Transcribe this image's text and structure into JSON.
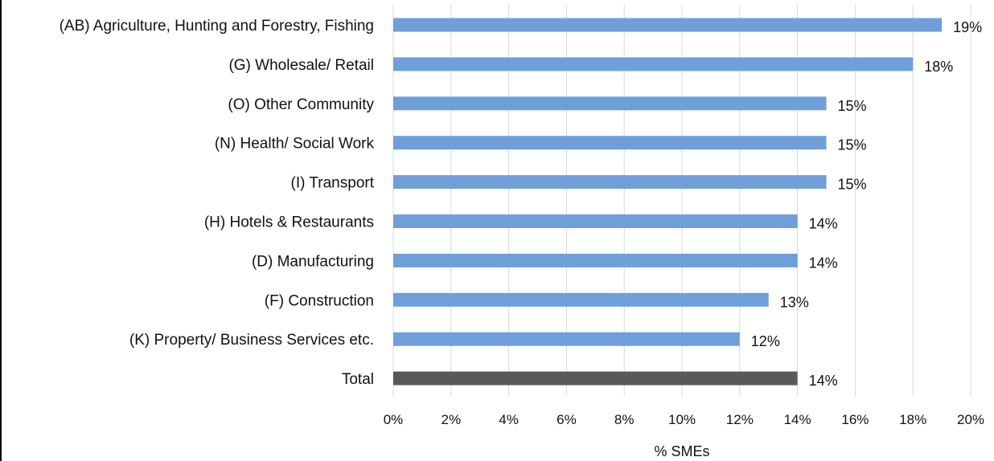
{
  "chart_data": {
    "type": "bar",
    "orientation": "horizontal",
    "categories": [
      "(AB) Agriculture, Hunting and Forestry, Fishing",
      "(G) Wholesale/ Retail",
      "(O) Other Community",
      "(N) Health/ Social Work",
      "(I) Transport",
      "(H) Hotels & Restaurants",
      "(D) Manufacturing",
      "(F) Construction",
      "(K) Property/ Business Services etc.",
      "Total"
    ],
    "values": [
      19,
      18,
      15,
      15,
      15,
      14,
      14,
      13,
      12,
      14
    ],
    "value_labels": [
      "19%",
      "18%",
      "15%",
      "15%",
      "15%",
      "14%",
      "14%",
      "13%",
      "12%",
      "14%"
    ],
    "bar_colors": [
      "#6f9fd8",
      "#6f9fd8",
      "#6f9fd8",
      "#6f9fd8",
      "#6f9fd8",
      "#6f9fd8",
      "#6f9fd8",
      "#6f9fd8",
      "#6f9fd8",
      "#595959"
    ],
    "xlabel": "% SMEs",
    "ylabel": "",
    "xlim": [
      0,
      20
    ],
    "x_ticks": [
      "0%",
      "2%",
      "4%",
      "6%",
      "8%",
      "10%",
      "12%",
      "14%",
      "16%",
      "18%",
      "20%"
    ],
    "grid": "vertical",
    "legend": "none"
  }
}
